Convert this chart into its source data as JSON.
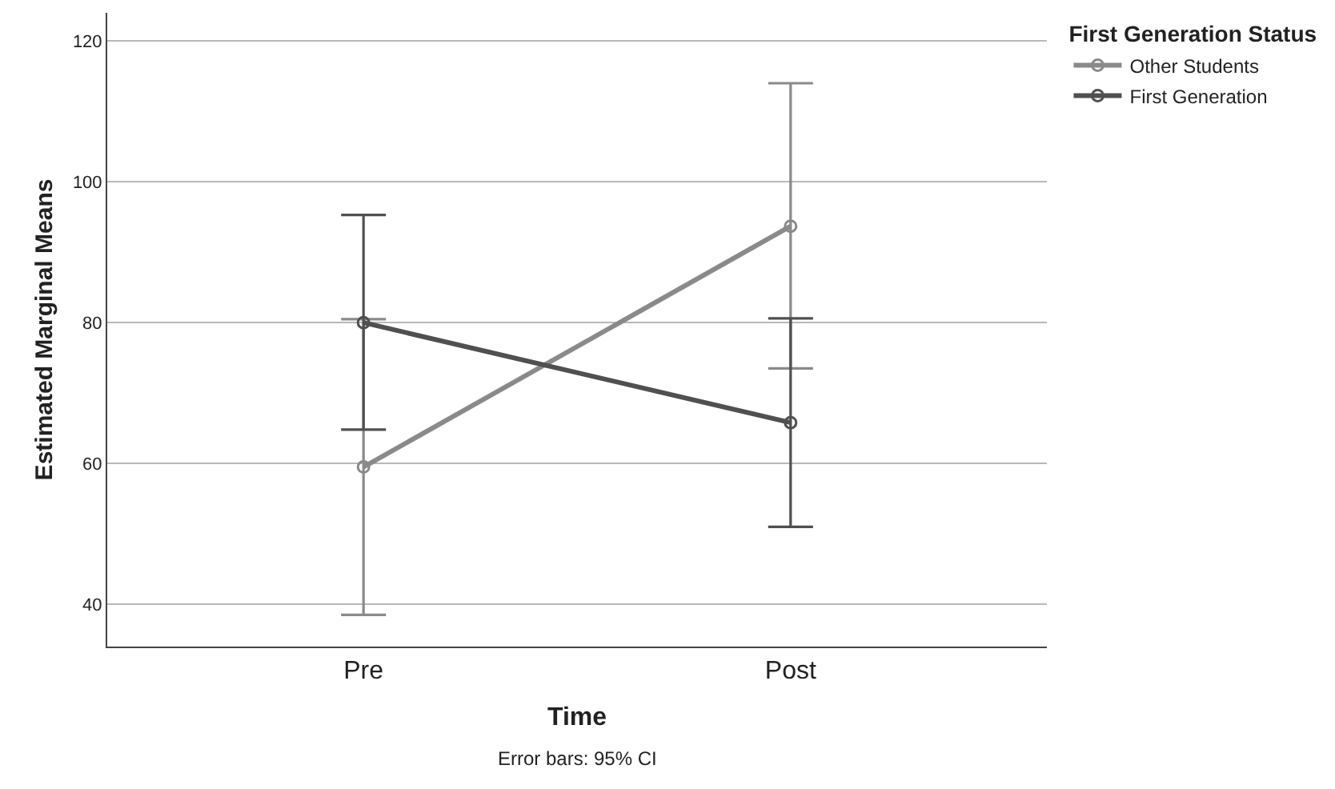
{
  "chart_data": {
    "type": "line",
    "xlabel": "Time",
    "ylabel": "Estimated Marginal Means",
    "legend_title": "First Generation Status",
    "categories": [
      "Pre",
      "Post"
    ],
    "series": [
      {
        "name": "Other Students",
        "color": "#8a8a8a",
        "values": [
          59.5,
          93.7
        ],
        "errors": [
          [
            38.5,
            80.5
          ],
          [
            73.5,
            114
          ]
        ]
      },
      {
        "name": "First Generation",
        "color": "#505050",
        "values": [
          80,
          65.8
        ],
        "errors": [
          [
            64.8,
            95.3
          ],
          [
            51,
            80.6
          ]
        ]
      }
    ],
    "ylim": [
      34,
      124
    ],
    "yticks": [
      40,
      60,
      80,
      100,
      120
    ],
    "grid": "y",
    "legend": "top right",
    "marker": "circle",
    "line_style": "solid",
    "annotations": [
      "Error bars: 95% CI"
    ]
  }
}
